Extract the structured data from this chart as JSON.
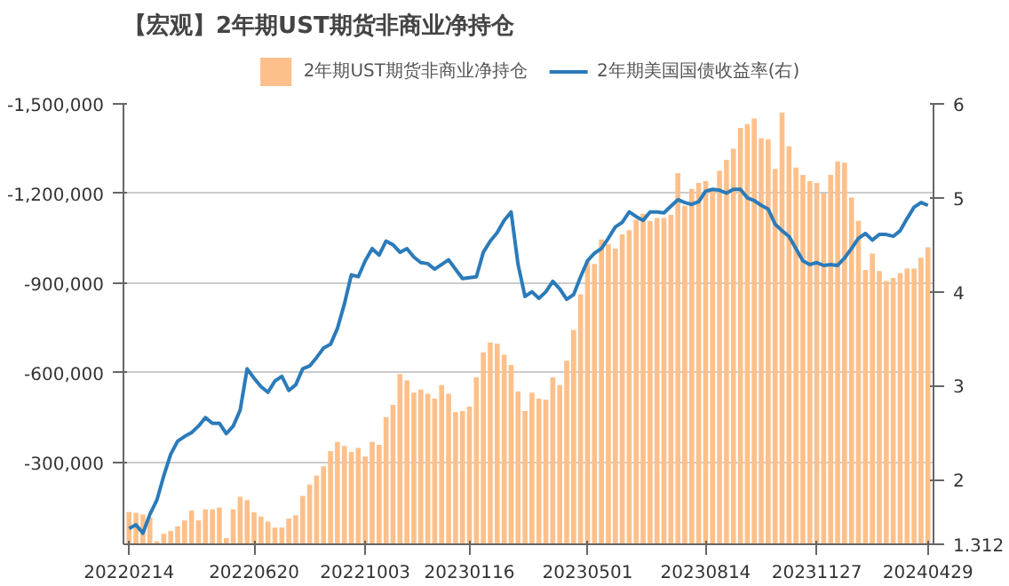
{
  "chart_data": {
    "type": "bar",
    "title": "【宏观】2年期UST期货非商业净持仓",
    "categories": [
      "20220214",
      null,
      null,
      null,
      null,
      null,
      null,
      null,
      null,
      null,
      null,
      null,
      null,
      null,
      null,
      null,
      null,
      null,
      "20220620",
      null,
      null,
      null,
      null,
      null,
      null,
      null,
      null,
      null,
      null,
      null,
      null,
      null,
      null,
      null,
      "20221003",
      null,
      null,
      null,
      null,
      null,
      null,
      null,
      null,
      null,
      null,
      null,
      null,
      null,
      null,
      "20230116",
      null,
      null,
      null,
      null,
      null,
      null,
      null,
      null,
      null,
      null,
      null,
      null,
      null,
      null,
      null,
      null,
      "20230501",
      null,
      null,
      null,
      null,
      null,
      null,
      null,
      null,
      null,
      null,
      null,
      null,
      null,
      null,
      null,
      null,
      "20230814",
      null,
      null,
      null,
      null,
      null,
      null,
      null,
      null,
      null,
      null,
      null,
      null,
      null,
      null,
      null,
      "20231127",
      null,
      null,
      null,
      null,
      null,
      null,
      null,
      null,
      null,
      null,
      null,
      null,
      null,
      null,
      null,
      "20240429"
    ],
    "series": [
      {
        "name": "2年期UST期货非商业净持仓",
        "color": "#fdc08a",
        "values": [
          -133000,
          -130000,
          -125000,
          -115000,
          -35000,
          -60000,
          -70000,
          -85000,
          -105000,
          -138000,
          -105000,
          -142000,
          -142000,
          -148000,
          -46000,
          -142000,
          -184000,
          -173000,
          -132000,
          -118000,
          -101000,
          -81000,
          -81000,
          -111000,
          -122000,
          -187000,
          -225000,
          -255000,
          -286000,
          -337000,
          -368000,
          -354000,
          -334000,
          -348000,
          -319000,
          -368000,
          -358000,
          -451000,
          -492000,
          -595000,
          -574000,
          -533000,
          -543000,
          -529000,
          -513000,
          -558000,
          -529000,
          -467000,
          -471000,
          -486000,
          -584000,
          -667000,
          -701000,
          -697000,
          -660000,
          -626000,
          -537000,
          -471000,
          -533000,
          -513000,
          -509000,
          -584000,
          -558000,
          -640000,
          -743000,
          -862000,
          -970000,
          -964000,
          -1046000,
          -1030000,
          -1016000,
          -1063000,
          -1077000,
          -1112000,
          -1132000,
          -1108000,
          -1118000,
          -1118000,
          -1128000,
          -1268000,
          -1159000,
          -1215000,
          -1235000,
          -1241000,
          -1215000,
          -1276000,
          -1313000,
          -1350000,
          -1420000,
          -1432000,
          -1451000,
          -1385000,
          -1381000,
          -1282000,
          -1471000,
          -1358000,
          -1287000,
          -1262000,
          -1241000,
          -1235000,
          -1200000,
          -1262000,
          -1307000,
          -1303000,
          -1186000,
          -1108000,
          -944000,
          -999000,
          -940000,
          -907000,
          -917000,
          -933000,
          -948000,
          -948000,
          -985000,
          -1020000
        ]
      },
      {
        "name": "2年期美国国债收益率(右)",
        "type": "line",
        "axis": "y2",
        "color": "#2b7bba",
        "values": [
          1.48,
          1.52,
          1.43,
          1.63,
          1.78,
          2.04,
          2.27,
          2.41,
          2.46,
          2.5,
          2.57,
          2.66,
          2.6,
          2.6,
          2.49,
          2.57,
          2.74,
          3.18,
          3.08,
          2.99,
          2.93,
          3.05,
          3.1,
          2.95,
          3.01,
          3.18,
          3.21,
          3.3,
          3.4,
          3.44,
          3.61,
          3.87,
          4.18,
          4.16,
          4.33,
          4.46,
          4.39,
          4.54,
          4.5,
          4.42,
          4.46,
          4.37,
          4.31,
          4.3,
          4.24,
          4.29,
          4.34,
          4.24,
          4.14,
          4.15,
          4.16,
          4.42,
          4.54,
          4.63,
          4.76,
          4.85,
          4.29,
          3.95,
          4.0,
          3.93,
          4.0,
          4.11,
          4.03,
          3.92,
          3.97,
          4.16,
          4.33,
          4.41,
          4.46,
          4.57,
          4.69,
          4.74,
          4.85,
          4.8,
          4.76,
          4.85,
          4.85,
          4.84,
          4.91,
          4.98,
          4.95,
          4.93,
          4.96,
          5.07,
          5.09,
          5.08,
          5.05,
          5.09,
          5.09,
          5.0,
          4.97,
          4.92,
          4.88,
          4.72,
          4.65,
          4.59,
          4.46,
          4.33,
          4.29,
          4.31,
          4.28,
          4.29,
          4.28,
          4.36,
          4.46,
          4.57,
          4.62,
          4.55,
          4.61,
          4.61,
          4.59,
          4.65,
          4.78,
          4.9,
          4.95,
          4.92
        ]
      }
    ],
    "ylim": [
      -25000,
      -1500000
    ],
    "yticks": [
      {
        "value": -1500000,
        "label": "-1,500,000"
      },
      {
        "value": -1200000,
        "label": "-1,200,000"
      },
      {
        "value": -900000,
        "label": "-900,000"
      },
      {
        "value": -600000,
        "label": "-600,000"
      },
      {
        "value": -300000,
        "label": "-300,000"
      }
    ],
    "y2lim": [
      1.312,
      6
    ],
    "y2ticks": [
      1.312,
      2,
      3,
      4,
      5,
      6
    ],
    "grid": "y",
    "legend": "top",
    "line_style": "solid",
    "marker": "none"
  }
}
